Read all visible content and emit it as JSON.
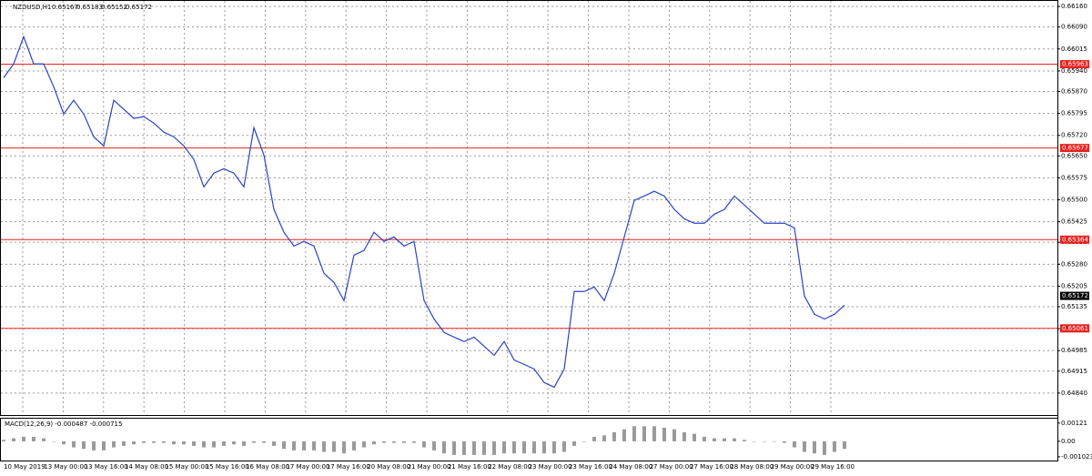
{
  "chart_data": [
    {
      "type": "line",
      "title": "NZDUSD,H1",
      "quote": [
        0.65167,
        0.65183,
        0.65152,
        0.65172
      ],
      "color": "#2c43c7",
      "values": [
        0.65917,
        0.65964,
        0.66057,
        0.65964,
        0.65964,
        0.65886,
        0.65793,
        0.6584,
        0.65793,
        0.65715,
        0.65684,
        0.6584,
        0.65809,
        0.65778,
        0.65784,
        0.65762,
        0.65731,
        0.65715,
        0.65684,
        0.65638,
        0.65544,
        0.65591,
        0.65606,
        0.65591,
        0.65544,
        0.65746,
        0.65653,
        0.65467,
        0.65389,
        0.65342,
        0.65358,
        0.65342,
        0.65249,
        0.65218,
        0.65156,
        0.65311,
        0.65327,
        0.65389,
        0.65358,
        0.65373,
        0.65342,
        0.65358,
        0.65156,
        0.65093,
        0.65047,
        0.65031,
        0.65016,
        0.65031,
        0.65,
        0.64969,
        0.65016,
        0.64953,
        0.64938,
        0.64922,
        0.64876,
        0.6486,
        0.64922,
        0.65187,
        0.65187,
        0.65202,
        0.65156,
        0.65249,
        0.65373,
        0.65498,
        0.65513,
        0.65529,
        0.65513,
        0.65467,
        0.65435,
        0.6542,
        0.6542,
        0.65451,
        0.65467,
        0.65513,
        0.65482,
        0.65451,
        0.6542,
        0.6542,
        0.6542,
        0.65404,
        0.65171,
        0.65109,
        0.65093,
        0.65109,
        0.6514
      ],
      "ylim": [
        0.64762,
        0.66176
      ],
      "yticks": [
        {
          "value": 0.6616,
          "label": "0.66160"
        },
        {
          "value": 0.6609,
          "label": "0.66090"
        },
        0.66015,
        {
          "value": 0.6594,
          "label": "0.65940"
        },
        {
          "value": 0.6587,
          "label": "0.65870"
        },
        0.65795,
        {
          "value": 0.6572,
          "label": "0.65720"
        },
        {
          "value": 0.6565,
          "label": "0.65650"
        },
        0.65575,
        {
          "value": 0.655,
          "label": "0.65500"
        },
        0.65425,
        0.65355,
        {
          "value": 0.6528,
          "label": "0.65280"
        },
        0.65205,
        0.65135,
        {
          "value": 0.6506,
          "label": "0.65060"
        },
        0.64985,
        0.64915,
        {
          "value": 0.6484,
          "label": "0.64840"
        }
      ],
      "levels": [
        0.65963,
        0.65677,
        0.65364,
        0.65061
      ],
      "level_color": "#e8231f",
      "last": 0.65172,
      "xticks": [
        "10 May 2019",
        "13 May 00:00",
        "13 May 16:00",
        "14 May 08:00",
        "15 May 00:00",
        "15 May 16:00",
        "16 May 08:00",
        "17 May 00:00",
        "17 May 16:00",
        "20 May 08:00",
        "21 May 00:00",
        "21 May 16:00",
        "22 May 08:00",
        "23 May 00:00",
        "23 May 16:00",
        "24 May 08:00",
        "27 May 00:00",
        "27 May 16:00",
        "28 May 08:00",
        "29 May 00:00",
        "29 May 16:00"
      ],
      "grid": true
    },
    {
      "type": "bar",
      "title": "MACD(12,26,9) -0.000487 -0.000715",
      "color": "#9a9a9a",
      "values": [
        0.0001,
        0.0002,
        0.0003,
        0.0003,
        0.0002,
        0,
        -0.0002,
        -0.0004,
        -0.0005,
        -0.0006,
        -0.0006,
        -0.0004,
        -0.0003,
        -0.0002,
        -0.0001,
        -0.0001,
        -0.0001,
        -0.0002,
        -0.0002,
        -0.0003,
        -0.0004,
        -0.0004,
        -0.0003,
        -0.0002,
        -0.0003,
        -0.0001,
        -0.0001,
        -0.0003,
        -0.0005,
        -0.0006,
        -0.0006,
        -0.0006,
        -0.0007,
        -0.0007,
        -0.0008,
        -0.0006,
        -0.0004,
        -0.0002,
        -0.0001,
        -0.0001,
        -0.0001,
        -0.0001,
        -0.0004,
        -0.0006,
        -0.0008,
        -0.0009,
        -0.0009,
        -0.0009,
        -0.0009,
        -0.0009,
        -0.0008,
        -0.0008,
        -0.0008,
        -0.0008,
        -0.0008,
        -0.0008,
        -0.0007,
        -0.0003,
        0,
        0.0003,
        0.0004,
        0.0006,
        0.0008,
        0.001,
        0.001,
        0.001,
        0.0009,
        0.0008,
        0.0006,
        0.0005,
        0.0003,
        0.0002,
        0.0002,
        0.0002,
        0.0001,
        0,
        0,
        0,
        -0.0001,
        -0.0004,
        -0.0007,
        -0.0008,
        -0.0009,
        -0.0007,
        -0.0005
      ],
      "ylim": [
        -0.00133,
        0.0015
      ],
      "yticks": [
        0.00121,
        {
          "value": 0,
          "label": "0.00"
        },
        -0.001023
      ]
    }
  ]
}
